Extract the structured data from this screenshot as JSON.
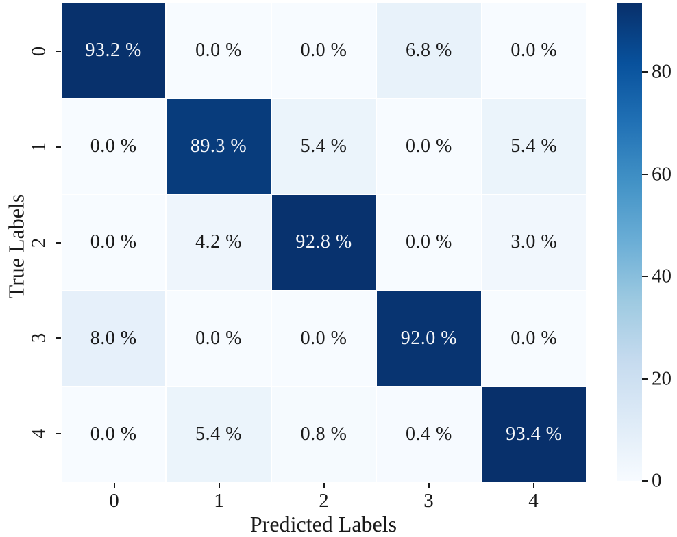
{
  "chart_data": {
    "type": "heatmap",
    "title": "",
    "xlabel": "Predicted Labels",
    "ylabel": "True Labels",
    "x_tick_labels": [
      "0",
      "1",
      "2",
      "3",
      "4"
    ],
    "y_tick_labels": [
      "0",
      "1",
      "2",
      "3",
      "4"
    ],
    "values": [
      [
        93.2,
        0.0,
        0.0,
        6.8,
        0.0
      ],
      [
        0.0,
        89.3,
        5.4,
        0.0,
        5.4
      ],
      [
        0.0,
        4.2,
        92.8,
        0.0,
        3.0
      ],
      [
        8.0,
        0.0,
        0.0,
        92.0,
        0.0
      ],
      [
        0.0,
        5.4,
        0.8,
        0.4,
        93.4
      ]
    ],
    "cell_labels": [
      [
        "93.2 %",
        "0.0 %",
        "0.0 %",
        "6.8 %",
        "0.0 %"
      ],
      [
        "0.0 %",
        "89.3 %",
        "5.4 %",
        "0.0 %",
        "5.4 %"
      ],
      [
        "0.0 %",
        "4.2 %",
        "92.8 %",
        "0.0 %",
        "3.0 %"
      ],
      [
        "8.0 %",
        "0.0 %",
        "0.0 %",
        "92.0 %",
        "0.0 %"
      ],
      [
        "0.0 %",
        "5.4 %",
        "0.8 %",
        "0.4 %",
        "93.4 %"
      ]
    ],
    "vmin": 0,
    "vmax": 93.4,
    "colormap": "Blues",
    "colormap_stops": [
      "#f7fbff",
      "#deebf7",
      "#c6dbef",
      "#9ecae1",
      "#6baed6",
      "#4292c6",
      "#2171b5",
      "#08519c",
      "#08306b"
    ],
    "colorbar_ticks": [
      0,
      20,
      40,
      60,
      80
    ],
    "colorbar_tick_labels": [
      "0",
      "20",
      "40",
      "60",
      "80"
    ],
    "grid_line_color": "#ffffff",
    "cell_text_color_dark": "#1a1a1a",
    "cell_text_color_light": "#f7f8fa",
    "legend_position": "right-colorbar",
    "grid": "off"
  }
}
